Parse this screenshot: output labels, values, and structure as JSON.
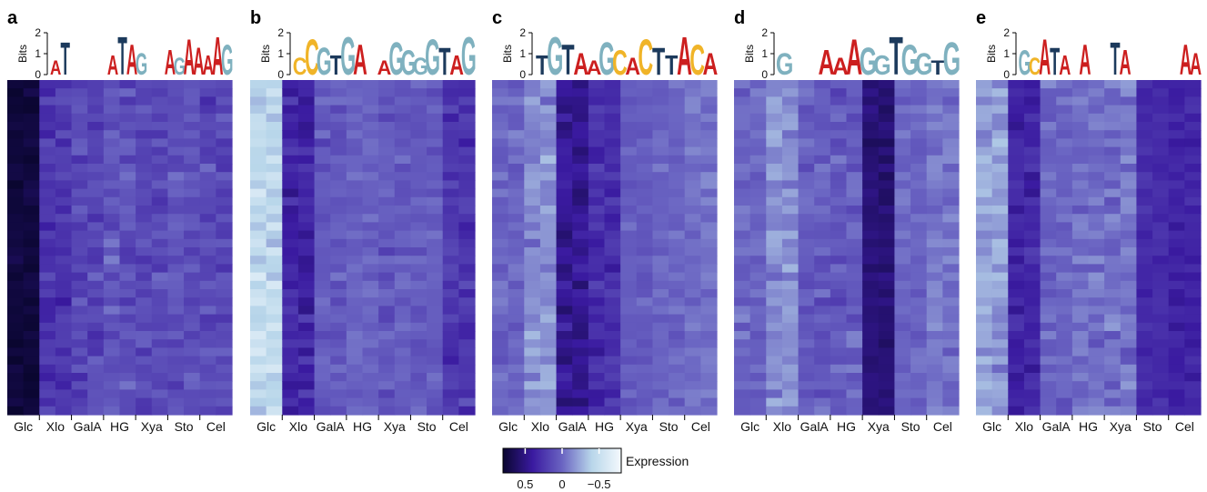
{
  "chart_data": {
    "type": "heatmap",
    "logo_axis_label": "Bits",
    "logo_yticks": [
      "0",
      "1",
      "2"
    ],
    "columns": [
      "Glc",
      "Xlo",
      "GalA",
      "HG",
      "Xya",
      "Sto",
      "Cel"
    ],
    "colorbar": {
      "label": "Expression",
      "ticks": [
        "0.5",
        "0",
        "−0.5"
      ],
      "range": [
        0.8,
        -0.8
      ],
      "colors": [
        "#0a0630",
        "#3a1aa0",
        "#6a64c2",
        "#b8d6ea",
        "#f4f9fd"
      ]
    },
    "base_colors": {
      "A": "#cc1f1f",
      "C": "#f0b428",
      "G": "#7fb1bf",
      "T": "#1c3a5c"
    },
    "rows_per_panel": 40,
    "panels": [
      {
        "label": "a",
        "logo": "AT....ATAG..AGAAAAG",
        "column_means": [
          0.75,
          0.25,
          0.15,
          0.1,
          0.15,
          0.1,
          0.15
        ],
        "column_spread": [
          0.12,
          0.18,
          0.2,
          0.2,
          0.2,
          0.18,
          0.2
        ]
      },
      {
        "label": "b",
        "logo": "CCGTGA.AGGGGTAG",
        "column_means": [
          -0.45,
          0.35,
          0.05,
          0.0,
          0.05,
          0.05,
          0.25
        ],
        "column_spread": [
          0.25,
          0.2,
          0.18,
          0.12,
          0.18,
          0.15,
          0.2
        ]
      },
      {
        "label": "c",
        "logo": "TGTAAGCACTTACA",
        "column_means": [
          0.0,
          -0.15,
          0.45,
          0.3,
          0.05,
          0.0,
          -0.05
        ],
        "column_spread": [
          0.15,
          0.22,
          0.18,
          0.18,
          0.12,
          0.12,
          0.15
        ]
      },
      {
        "label": "d",
        "logo": "G..AAAGGTGGTG",
        "column_means": [
          0.0,
          -0.15,
          0.05,
          0.05,
          0.55,
          0.0,
          -0.05
        ],
        "column_spread": [
          0.15,
          0.2,
          0.18,
          0.2,
          0.12,
          0.12,
          0.15
        ]
      },
      {
        "label": "e",
        "logo": "GCATA.A..TA.....AA",
        "column_means": [
          -0.2,
          0.35,
          0.0,
          -0.05,
          -0.05,
          0.3,
          0.35
        ],
        "column_spread": [
          0.22,
          0.2,
          0.18,
          0.18,
          0.2,
          0.12,
          0.12
        ]
      }
    ]
  }
}
